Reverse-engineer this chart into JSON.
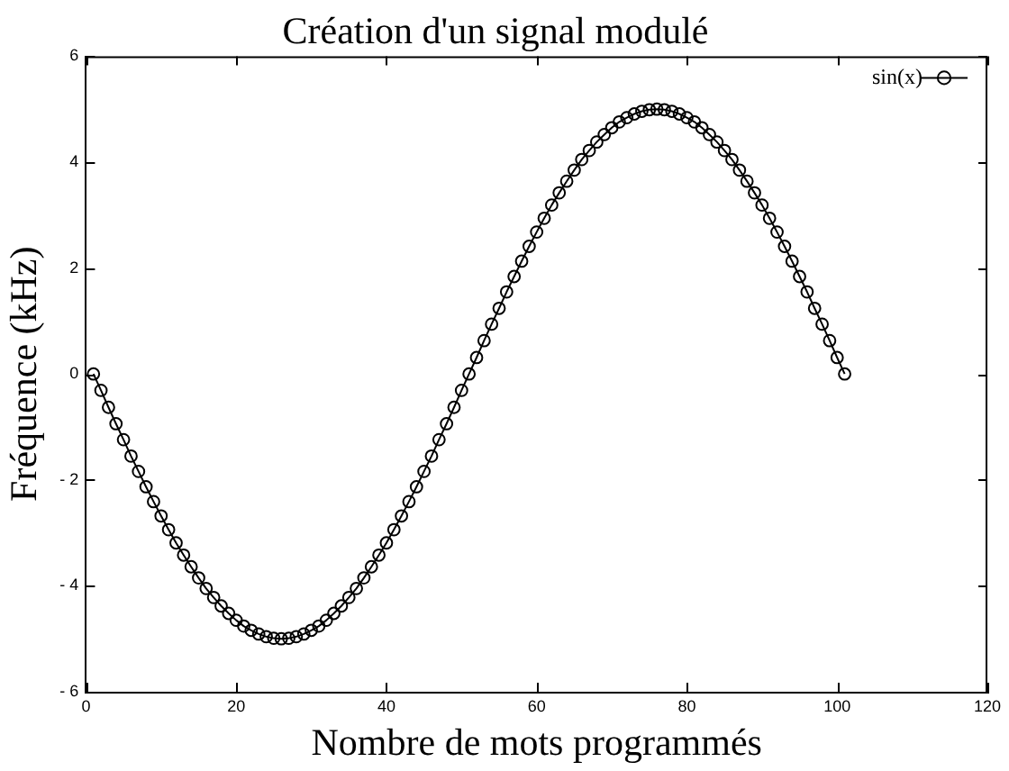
{
  "chart_data": {
    "type": "line",
    "title": "Création d'un signal modulé",
    "xlabel": "Nombre de mots programmés",
    "ylabel": "Fréquence (kHz)",
    "x": [
      1,
      2,
      3,
      4,
      5,
      6,
      7,
      8,
      9,
      10,
      11,
      12,
      13,
      14,
      15,
      16,
      17,
      18,
      19,
      20,
      21,
      22,
      23,
      24,
      25,
      26,
      27,
      28,
      29,
      30,
      31,
      32,
      33,
      34,
      35,
      36,
      37,
      38,
      39,
      40,
      41,
      42,
      43,
      44,
      45,
      46,
      47,
      48,
      49,
      50,
      51,
      52,
      53,
      54,
      55,
      56,
      57,
      58,
      59,
      60,
      61,
      62,
      63,
      64,
      65,
      66,
      67,
      68,
      69,
      70,
      71,
      72,
      73,
      74,
      75,
      76,
      77,
      78,
      79,
      80,
      81,
      82,
      83,
      84,
      85,
      86,
      87,
      88,
      89,
      90,
      91,
      92,
      93,
      94,
      95,
      96,
      97,
      98,
      99,
      100,
      101
    ],
    "series": [
      {
        "name": "sin(x)",
        "color": "#000000",
        "values": [
          0,
          -0.31,
          -0.63,
          -0.94,
          -1.24,
          -1.55,
          -1.84,
          -2.13,
          -2.41,
          -2.68,
          -2.94,
          -3.19,
          -3.42,
          -3.64,
          -3.85,
          -4.05,
          -4.22,
          -4.38,
          -4.52,
          -4.65,
          -4.76,
          -4.84,
          -4.91,
          -4.96,
          -4.99,
          -5,
          -4.99,
          -4.96,
          -4.91,
          -4.84,
          -4.76,
          -4.65,
          -4.52,
          -4.38,
          -4.22,
          -4.05,
          -3.85,
          -3.64,
          -3.42,
          -3.19,
          -2.94,
          -2.68,
          -2.41,
          -2.13,
          -1.84,
          -1.55,
          -1.24,
          -0.94,
          -0.63,
          -0.31,
          0,
          0.31,
          0.63,
          0.94,
          1.24,
          1.55,
          1.84,
          2.13,
          2.41,
          2.68,
          2.94,
          3.19,
          3.42,
          3.64,
          3.85,
          4.05,
          4.22,
          4.38,
          4.52,
          4.65,
          4.76,
          4.84,
          4.91,
          4.96,
          4.99,
          5,
          4.99,
          4.96,
          4.91,
          4.84,
          4.76,
          4.65,
          4.52,
          4.38,
          4.22,
          4.05,
          3.85,
          3.64,
          3.42,
          3.19,
          2.94,
          2.68,
          2.41,
          2.13,
          1.84,
          1.55,
          1.24,
          0.94,
          0.63,
          0.31,
          0
        ]
      }
    ],
    "xlim": [
      0,
      120
    ],
    "xticks": [
      0,
      20,
      40,
      60,
      80,
      100,
      120
    ],
    "ylim": [
      -6,
      6
    ],
    "yticks": [
      {
        "value": -6,
        "label": "- 6"
      },
      {
        "value": -4,
        "label": "- 4"
      },
      {
        "value": -2,
        "label": "- 2"
      },
      0,
      2,
      4,
      6
    ],
    "grid": false,
    "legend": "top right",
    "marker": "circle",
    "line_style": "solid"
  }
}
